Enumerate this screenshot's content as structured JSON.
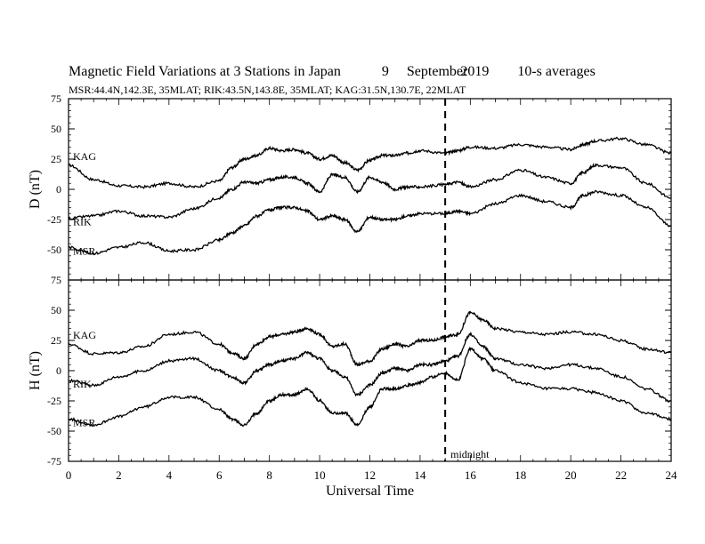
{
  "title": {
    "main": "Magnetic Field Variations at 3 Stations in Japan",
    "day": "9",
    "month": "September",
    "year": "2019",
    "avg": "10-s averages"
  },
  "subtitle": "MSR:44.4N,142.3E, 35MLAT;  RIK:43.5N,143.8E, 35MLAT;  KAG:31.5N,130.7E, 22MLAT",
  "chart_data": [
    {
      "type": "line",
      "panel": "top",
      "ylabel": "D (nT)",
      "xlabel": "",
      "xlim": [
        0,
        24
      ],
      "ylim": [
        -75,
        75
      ],
      "yticks": [
        -75,
        -50,
        -25,
        0,
        25,
        50,
        75
      ],
      "xticks": [
        0,
        2,
        4,
        6,
        8,
        10,
        12,
        14,
        16,
        18,
        20,
        22,
        24
      ],
      "x": [
        0,
        1,
        2,
        3,
        4,
        5,
        6,
        6.5,
        7,
        7.5,
        8,
        8.5,
        9,
        9.5,
        10,
        10.5,
        11,
        11.5,
        12,
        12.5,
        13,
        13.5,
        14,
        15,
        15.5,
        16,
        17,
        18,
        19,
        20,
        20.5,
        21,
        22,
        23,
        24
      ],
      "series": [
        {
          "name": "KAG",
          "values": [
            20,
            8,
            3,
            2,
            5,
            2,
            7,
            18,
            25,
            28,
            34,
            32,
            33,
            30,
            25,
            28,
            22,
            16,
            24,
            28,
            28,
            30,
            32,
            30,
            32,
            35,
            34,
            37,
            35,
            33,
            37,
            40,
            42,
            37,
            30
          ]
        },
        {
          "name": "RIK",
          "values": [
            -24,
            -22,
            -18,
            -22,
            -23,
            -16,
            -7,
            0,
            6,
            5,
            8,
            10,
            10,
            5,
            -2,
            12,
            10,
            -2,
            10,
            6,
            0,
            2,
            2,
            4,
            6,
            2,
            8,
            16,
            10,
            5,
            14,
            20,
            18,
            5,
            -7
          ]
        },
        {
          "name": "MSR",
          "values": [
            -48,
            -53,
            -48,
            -44,
            -51,
            -50,
            -42,
            -36,
            -30,
            -22,
            -17,
            -15,
            -15,
            -18,
            -25,
            -22,
            -25,
            -35,
            -23,
            -25,
            -25,
            -22,
            -20,
            -20,
            -18,
            -20,
            -12,
            -5,
            -10,
            -15,
            -5,
            -2,
            -5,
            -15,
            -30
          ]
        }
      ],
      "labels": {
        "kag": "KAG",
        "rik": "RIK",
        "msr": "MSR"
      }
    },
    {
      "type": "line",
      "panel": "bottom",
      "ylabel": "H (nT)",
      "xlabel": "Universal Time",
      "xlim": [
        0,
        24
      ],
      "ylim": [
        -75,
        75
      ],
      "yticks": [
        -75,
        -50,
        -25,
        0,
        25,
        50,
        75
      ],
      "xticks": [
        0,
        2,
        4,
        6,
        8,
        10,
        12,
        14,
        16,
        18,
        20,
        22,
        24
      ],
      "x": [
        0,
        1,
        2,
        3,
        4,
        5,
        6,
        6.5,
        7,
        7.5,
        8,
        8.5,
        9,
        9.5,
        10,
        10.5,
        11,
        11.5,
        12,
        12.5,
        13,
        13.5,
        14,
        14.5,
        15,
        15.5,
        16,
        16.5,
        17,
        18,
        19,
        20,
        21,
        22,
        23,
        24
      ],
      "series": [
        {
          "name": "KAG",
          "values": [
            22,
            14,
            15,
            20,
            30,
            32,
            22,
            15,
            10,
            22,
            28,
            30,
            32,
            35,
            30,
            20,
            22,
            5,
            8,
            18,
            22,
            20,
            25,
            25,
            28,
            30,
            48,
            42,
            35,
            32,
            30,
            32,
            30,
            25,
            18,
            15
          ]
        },
        {
          "name": "RIK",
          "values": [
            -8,
            -12,
            -5,
            0,
            8,
            10,
            0,
            -5,
            -10,
            0,
            5,
            8,
            10,
            15,
            10,
            0,
            -5,
            -20,
            -12,
            -2,
            2,
            0,
            5,
            5,
            8,
            12,
            30,
            20,
            10,
            5,
            2,
            5,
            2,
            -5,
            -15,
            -25
          ]
        },
        {
          "name": "MSR",
          "values": [
            -40,
            -45,
            -38,
            -30,
            -22,
            -22,
            -32,
            -40,
            -45,
            -35,
            -25,
            -20,
            -20,
            -15,
            -25,
            -35,
            -35,
            -45,
            -30,
            -15,
            -15,
            -12,
            -10,
            -5,
            -2,
            -8,
            18,
            10,
            0,
            -10,
            -15,
            -15,
            -18,
            -25,
            -35,
            -40
          ]
        }
      ],
      "labels": {
        "kag": "KAG",
        "rik": "RIK",
        "msr": "MSR"
      }
    }
  ],
  "midnight": {
    "x": 15,
    "label": "midnight"
  }
}
